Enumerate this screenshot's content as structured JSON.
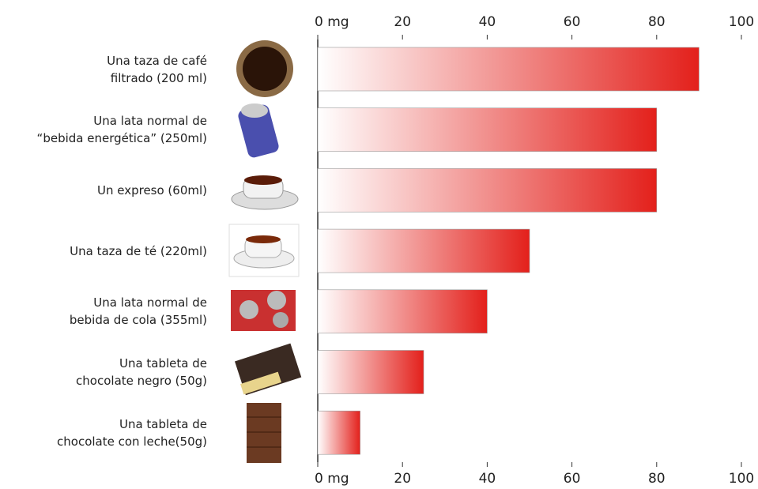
{
  "chart_data": {
    "type": "barh",
    "categories": [
      "Una taza de café\nfiltrado (200 ml)",
      "Una lata normal de\n“bebida energética” (250ml)",
      "Un expreso (60ml)",
      "Una taza de té (220ml)",
      "Una lata normal de\nbebida de cola (355ml)",
      "Una tableta de\nchocolate negro (50g)",
      "Una tableta de\nchocolate con leche(50g)"
    ],
    "values": [
      90,
      80,
      80,
      50,
      40,
      25,
      10
    ],
    "color": "#e3201b",
    "xlim": [
      0,
      100
    ],
    "xticks": [
      {
        "value": 0,
        "label": "0 mg"
      },
      20,
      40,
      60,
      80,
      100
    ],
    "grid": false
  }
}
